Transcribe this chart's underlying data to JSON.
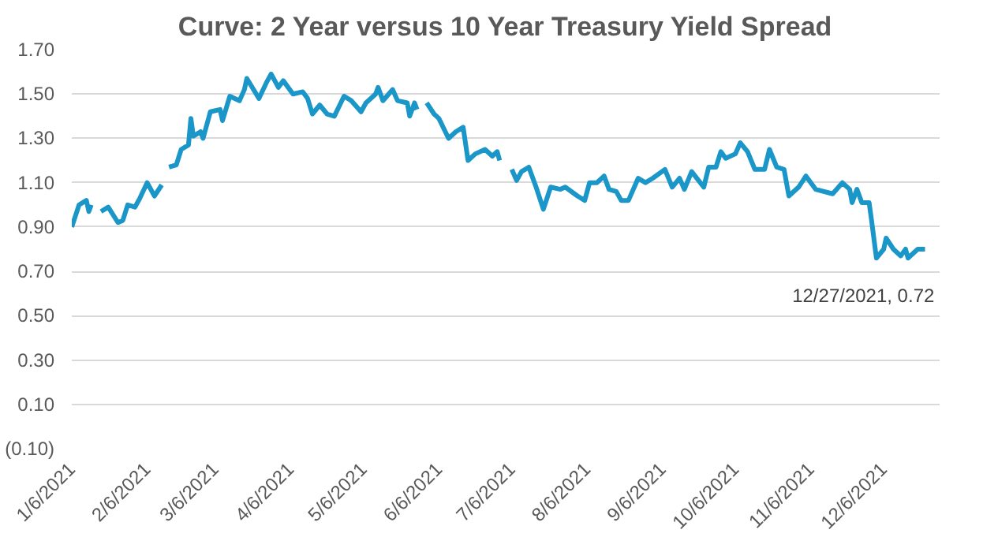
{
  "chart_data": {
    "type": "line",
    "title": "Curve: 2 Year versus 10 Year Treasury Yield Spread",
    "x": [
      "2021-01-06",
      "2021-01-09",
      "2021-01-12",
      "2021-01-13",
      "2021-01-14",
      "2021-01-16",
      "2021-01-18",
      "2021-01-21",
      "2021-01-25",
      "2021-01-27",
      "2021-01-29",
      "2021-02-01",
      "2021-02-03",
      "2021-02-06",
      "2021-02-09",
      "2021-02-12",
      "2021-02-13",
      "2021-02-15",
      "2021-02-18",
      "2021-02-20",
      "2021-02-23",
      "2021-02-24",
      "2021-02-25",
      "2021-02-28",
      "2021-03-01",
      "2021-03-04",
      "2021-03-08",
      "2021-03-09",
      "2021-03-12",
      "2021-03-16",
      "2021-03-18",
      "2021-03-19",
      "2021-03-24",
      "2021-03-27",
      "2021-03-29",
      "2021-04-01",
      "2021-04-03",
      "2021-04-07",
      "2021-04-11",
      "2021-04-13",
      "2021-04-15",
      "2021-04-18",
      "2021-04-21",
      "2021-04-24",
      "2021-04-28",
      "2021-05-01",
      "2021-05-05",
      "2021-05-07",
      "2021-05-11",
      "2021-05-12",
      "2021-05-14",
      "2021-05-18",
      "2021-05-20",
      "2021-05-24",
      "2021-05-25",
      "2021-05-27",
      "2021-05-28",
      "2021-05-30",
      "2021-06-01",
      "2021-06-04",
      "2021-06-06",
      "2021-06-10",
      "2021-06-13",
      "2021-06-16",
      "2021-06-18",
      "2021-06-21",
      "2021-06-25",
      "2021-06-28",
      "2021-06-30",
      "2021-07-01",
      "2021-07-03",
      "2021-07-06",
      "2021-07-08",
      "2021-07-10",
      "2021-07-13",
      "2021-07-16",
      "2021-07-19",
      "2021-07-22",
      "2021-07-26",
      "2021-07-28",
      "2021-08-02",
      "2021-08-05",
      "2021-08-07",
      "2021-08-10",
      "2021-08-13",
      "2021-08-15",
      "2021-08-18",
      "2021-08-20",
      "2021-08-23",
      "2021-08-27",
      "2021-08-30",
      "2021-09-02",
      "2021-09-07",
      "2021-09-10",
      "2021-09-13",
      "2021-09-15",
      "2021-09-18",
      "2021-09-23",
      "2021-09-25",
      "2021-09-28",
      "2021-09-30",
      "2021-10-02",
      "2021-10-06",
      "2021-10-08",
      "2021-10-11",
      "2021-10-14",
      "2021-10-18",
      "2021-10-20",
      "2021-10-23",
      "2021-10-26",
      "2021-10-28",
      "2021-11-01",
      "2021-11-04",
      "2021-11-08",
      "2021-11-15",
      "2021-11-19",
      "2021-11-22",
      "2021-11-23",
      "2021-11-25",
      "2021-11-27",
      "2021-11-30",
      "2021-12-01",
      "2021-12-03",
      "2021-12-06",
      "2021-12-07",
      "2021-12-10",
      "2021-12-13",
      "2021-12-15",
      "2021-12-16",
      "2021-12-20",
      "2021-12-23"
    ],
    "series": [
      {
        "color": "#1a96c8",
        "values": [
          0.9,
          1.0,
          1.02,
          0.97,
          1.0,
          null,
          0.97,
          0.99,
          0.92,
          0.93,
          1.0,
          0.99,
          1.03,
          1.1,
          1.04,
          1.09,
          null,
          1.17,
          1.18,
          1.25,
          1.27,
          1.39,
          1.31,
          1.33,
          1.3,
          1.42,
          1.43,
          1.38,
          1.49,
          1.47,
          1.52,
          1.57,
          1.48,
          1.55,
          1.59,
          1.53,
          1.56,
          1.5,
          1.51,
          1.48,
          1.41,
          1.45,
          1.41,
          1.4,
          1.49,
          1.47,
          1.42,
          1.46,
          1.5,
          1.53,
          1.47,
          1.52,
          1.47,
          1.46,
          1.4,
          1.46,
          1.43,
          null,
          1.46,
          1.41,
          1.39,
          1.3,
          1.33,
          1.35,
          1.2,
          1.23,
          1.25,
          1.22,
          1.24,
          1.2,
          null,
          1.16,
          1.11,
          1.15,
          1.17,
          1.08,
          0.98,
          1.08,
          1.07,
          1.08,
          1.04,
          1.02,
          1.1,
          1.1,
          1.13,
          1.07,
          1.06,
          1.02,
          1.02,
          1.12,
          1.1,
          1.12,
          1.16,
          1.08,
          1.12,
          1.07,
          1.15,
          1.08,
          1.17,
          1.17,
          1.24,
          1.21,
          1.23,
          1.28,
          1.24,
          1.16,
          1.16,
          1.25,
          1.17,
          1.16,
          1.04,
          1.08,
          1.13,
          1.07,
          1.05,
          1.1,
          1.07,
          1.01,
          1.07,
          1.01,
          1.01,
          0.93,
          0.76,
          0.8,
          0.85,
          0.8,
          0.77,
          0.8,
          0.76,
          0.8,
          0.8
        ]
      }
    ],
    "xlim": [
      "2021-01-06",
      "2021-12-29"
    ],
    "xticks": [
      {
        "value": "2021-01-06",
        "label": "1/6/2021"
      },
      {
        "value": "2021-02-06",
        "label": "2/6/2021"
      },
      {
        "value": "2021-03-06",
        "label": "3/6/2021"
      },
      {
        "value": "2021-04-06",
        "label": "4/6/2021"
      },
      {
        "value": "2021-05-06",
        "label": "5/6/2021"
      },
      {
        "value": "2021-06-06",
        "label": "6/6/2021"
      },
      {
        "value": "2021-07-06",
        "label": "7/6/2021"
      },
      {
        "value": "2021-08-06",
        "label": "8/6/2021"
      },
      {
        "value": "2021-09-06",
        "label": "9/6/2021"
      },
      {
        "value": "2021-10-06",
        "label": "10/6/2021"
      },
      {
        "value": "2021-11-06",
        "label": "11/6/2021"
      },
      {
        "value": "2021-12-06",
        "label": "12/6/2021"
      }
    ],
    "ylim": [
      -0.1,
      1.7
    ],
    "yticks": [
      {
        "value": -0.1,
        "label": "(0.10)"
      },
      {
        "value": 0.1,
        "label": "0.10"
      },
      {
        "value": 0.3,
        "label": "0.30"
      },
      {
        "value": 0.5,
        "label": "0.50"
      },
      {
        "value": 0.7,
        "label": "0.70"
      },
      {
        "value": 0.9,
        "label": "0.90"
      },
      {
        "value": 1.1,
        "label": "1.10"
      },
      {
        "value": 1.3,
        "label": "1.30"
      },
      {
        "value": 1.5,
        "label": "1.50"
      },
      {
        "value": 1.7,
        "label": "1.70"
      }
    ],
    "grid": "y",
    "annotations": [
      "12/27/2021,  0.72"
    ]
  }
}
